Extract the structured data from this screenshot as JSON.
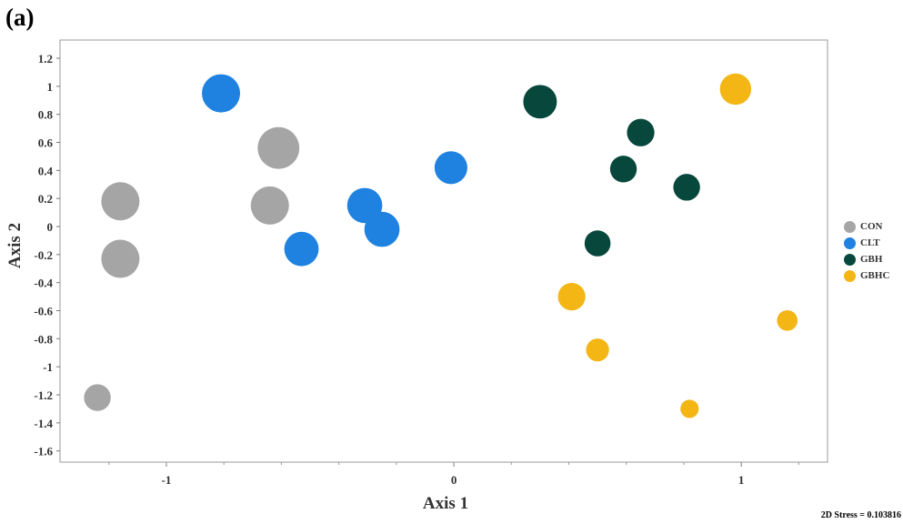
{
  "panel_label": "(a)",
  "stress_label": "2D Stress = 0.103816",
  "chart_data": {
    "type": "scatter",
    "xlabel": "Axis 1",
    "ylabel": "Axis 2",
    "xlim": [
      -1.37,
      1.3
    ],
    "ylim": [
      -1.68,
      1.33
    ],
    "xticks": [
      -1,
      0,
      1
    ],
    "yticks": [
      -1.6,
      -1.4,
      -1.2,
      -1,
      -0.8,
      -0.6,
      -0.4,
      -0.2,
      0,
      0.2,
      0.4,
      0.6,
      0.8,
      1,
      1.2
    ],
    "ytick_labels": [
      "-1.6",
      "-1.4",
      "-1.2",
      "-1",
      "-0.8",
      "-0.6",
      "-0.4",
      "-0.2",
      "0",
      "0.2",
      "0.4",
      "0.6",
      "0.8",
      "1",
      "1.2"
    ],
    "xtick_labels": [
      "-1",
      "0",
      "1"
    ],
    "legend_position": "right",
    "series": [
      {
        "name": "CON",
        "color": "#a5a5a5",
        "points": [
          {
            "x": -1.16,
            "y": 0.18,
            "size": 1.0
          },
          {
            "x": -1.16,
            "y": -0.23,
            "size": 1.0
          },
          {
            "x": -0.61,
            "y": 0.56,
            "size": 1.09
          },
          {
            "x": -0.64,
            "y": 0.15,
            "size": 1.0
          },
          {
            "x": -1.24,
            "y": -1.22,
            "size": 0.7
          }
        ]
      },
      {
        "name": "CLT",
        "color": "#1f82e0",
        "points": [
          {
            "x": -0.81,
            "y": 0.95,
            "size": 1.0
          },
          {
            "x": -0.31,
            "y": 0.15,
            "size": 0.92
          },
          {
            "x": -0.25,
            "y": -0.02,
            "size": 0.92
          },
          {
            "x": -0.53,
            "y": -0.16,
            "size": 0.9
          },
          {
            "x": -0.01,
            "y": 0.42,
            "size": 0.86
          }
        ]
      },
      {
        "name": "GBH",
        "color": "#08483c",
        "points": [
          {
            "x": 0.3,
            "y": 0.89,
            "size": 0.88
          },
          {
            "x": 0.65,
            "y": 0.67,
            "size": 0.72
          },
          {
            "x": 0.59,
            "y": 0.41,
            "size": 0.7
          },
          {
            "x": 0.81,
            "y": 0.28,
            "size": 0.7
          },
          {
            "x": 0.5,
            "y": -0.12,
            "size": 0.68
          }
        ]
      },
      {
        "name": "GBHC",
        "color": "#f3b615",
        "points": [
          {
            "x": 0.98,
            "y": 0.98,
            "size": 0.82
          },
          {
            "x": 0.41,
            "y": -0.5,
            "size": 0.72
          },
          {
            "x": 0.5,
            "y": -0.88,
            "size": 0.6
          },
          {
            "x": 1.16,
            "y": -0.67,
            "size": 0.54
          },
          {
            "x": 0.82,
            "y": -1.3,
            "size": 0.48
          }
        ]
      }
    ]
  }
}
